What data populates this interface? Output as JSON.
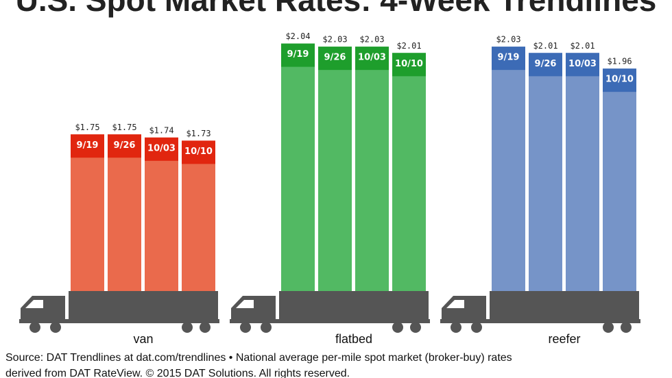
{
  "chart_data": {
    "type": "bar",
    "title": "U.S. Spot Market Rates: 4-Week Trendlines",
    "categories": [
      "van",
      "flatbed",
      "reefer"
    ],
    "series": [
      {
        "name": "9/19",
        "values": [
          1.75,
          2.04,
          2.03
        ],
        "value_labels": [
          "$1.75",
          "$2.04",
          "$2.03"
        ]
      },
      {
        "name": "9/26",
        "values": [
          1.75,
          2.03,
          2.01
        ],
        "value_labels": [
          "$1.75",
          "$2.03",
          "$2.01"
        ]
      },
      {
        "name": "10/03",
        "values": [
          1.74,
          2.03,
          2.01
        ],
        "value_labels": [
          "$1.74",
          "$2.03",
          "$2.01"
        ]
      },
      {
        "name": "10/10",
        "values": [
          1.73,
          2.01,
          1.96
        ],
        "value_labels": [
          "$1.73",
          "$2.01",
          "$1.96"
        ]
      }
    ],
    "category_colors": [
      "#ea6a4c",
      "#52b963",
      "#7694c8"
    ],
    "label_band_colors": [
      "#e1260f",
      "#1e9e2c",
      "#3c6bb6"
    ],
    "ylim": [
      1.25,
      2.05
    ],
    "source": [
      "Source: DAT Trendlines at dat.com/trendlines • National average per-mile spot market (broker-buy) rates",
      "derived from DAT RateView. © 2015 DAT Solutions. All rights reserved."
    ]
  }
}
